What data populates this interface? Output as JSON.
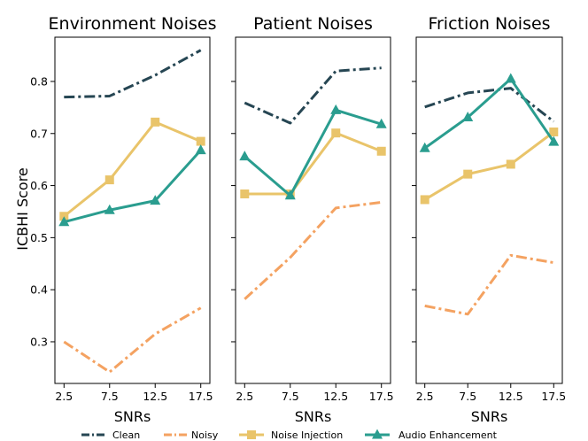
{
  "chart_data": {
    "type": "line",
    "ylabel": "ICBHI Score",
    "ylim": [
      0.22,
      0.885
    ],
    "yticks": [
      0.3,
      0.4,
      0.5,
      0.6,
      0.7,
      0.8
    ],
    "ytick_labels": [
      "0.3",
      "0.4",
      "0.5",
      "0.6",
      "0.7",
      "0.8"
    ],
    "x": [
      2.5,
      7.5,
      12.5,
      17.5
    ],
    "xtick_labels": [
      "2.5",
      "7.5",
      "12.5",
      "17.5"
    ],
    "xlim": [
      1.5,
      18.5
    ],
    "legend_position": "bottom",
    "series_styles": [
      {
        "name": "Clean",
        "color": "#264653",
        "dash": "dashdot",
        "marker": "none"
      },
      {
        "name": "Noisy",
        "color": "#f4a261",
        "dash": "dashdot",
        "marker": "none"
      },
      {
        "name": "Noise Injection",
        "color": "#e9c46a",
        "dash": "solid",
        "marker": "square"
      },
      {
        "name": "Audio Enhancement",
        "color": "#2a9d8f",
        "dash": "solid",
        "marker": "triangle"
      }
    ],
    "panels": [
      {
        "title": "Environment Noises",
        "xlabel": "SNRs",
        "series": [
          {
            "name": "Clean",
            "values": [
              0.77,
              0.772,
              0.812,
              0.86
            ]
          },
          {
            "name": "Noisy",
            "values": [
              0.3,
              0.242,
              0.315,
              0.365
            ]
          },
          {
            "name": "Noise Injection",
            "values": [
              0.541,
              0.611,
              0.722,
              0.685
            ]
          },
          {
            "name": "Audio Enhancement",
            "values": [
              0.53,
              0.553,
              0.571,
              0.668
            ]
          }
        ]
      },
      {
        "title": "Patient Noises",
        "xlabel": "SNRs",
        "series": [
          {
            "name": "Clean",
            "values": [
              0.759,
              0.72,
              0.82,
              0.826
            ]
          },
          {
            "name": "Noisy",
            "values": [
              0.382,
              0.462,
              0.557,
              0.568
            ]
          },
          {
            "name": "Noise Injection",
            "values": [
              0.584,
              0.584,
              0.701,
              0.666
            ]
          },
          {
            "name": "Audio Enhancement",
            "values": [
              0.656,
              0.581,
              0.745,
              0.718
            ]
          }
        ]
      },
      {
        "title": "Friction Noises",
        "xlabel": "SNRs",
        "series": [
          {
            "name": "Clean",
            "values": [
              0.751,
              0.778,
              0.787,
              0.723
            ]
          },
          {
            "name": "Noisy",
            "values": [
              0.369,
              0.353,
              0.466,
              0.452
            ]
          },
          {
            "name": "Noise Injection",
            "values": [
              0.573,
              0.622,
              0.641,
              0.703
            ]
          },
          {
            "name": "Audio Enhancement",
            "values": [
              0.672,
              0.731,
              0.805,
              0.684
            ]
          }
        ]
      }
    ]
  }
}
